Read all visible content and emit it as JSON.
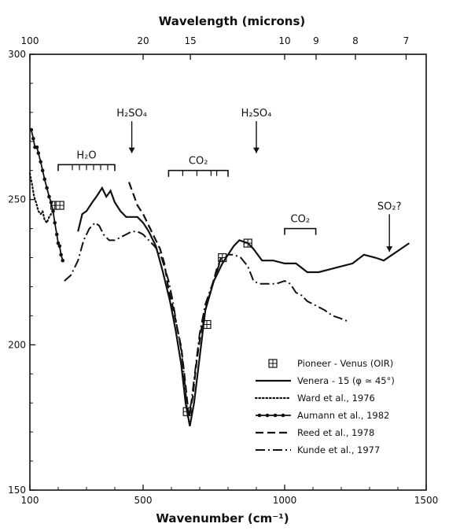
{
  "chart_data": {
    "type": "line",
    "xlabel": "Wavenumber (cm⁻¹)",
    "x2label": "Wavelength (microns)",
    "xlim": [
      100,
      1500
    ],
    "ylim": [
      150,
      300
    ],
    "x_ticks": [
      100,
      500,
      1000,
      1500
    ],
    "y_ticks": [
      150,
      200,
      250,
      300
    ],
    "x2_ticks": [
      {
        "label": "100",
        "wavenumber": 100
      },
      {
        "label": "20",
        "wavenumber": 500
      },
      {
        "label": "15",
        "wavenumber": 667
      },
      {
        "label": "10",
        "wavenumber": 1000
      },
      {
        "label": "9",
        "wavenumber": 1111
      },
      {
        "label": "8",
        "wavenumber": 1250
      },
      {
        "label": "7",
        "wavenumber": 1429
      }
    ],
    "legend_position": "lower-right",
    "series": [
      {
        "name": "Pioneer - Venus (OIR)",
        "style": "boxplus",
        "points": [
          [
            188,
            248
          ],
          [
            206,
            248
          ],
          [
            656,
            177
          ],
          [
            725,
            207
          ],
          [
            780,
            230
          ],
          [
            870,
            235
          ]
        ]
      },
      {
        "name": "Venera - 15 (φ ≃ 45°)",
        "style": "solid",
        "points": [
          [
            270,
            239
          ],
          [
            285,
            245
          ],
          [
            300,
            246
          ],
          [
            320,
            249
          ],
          [
            335,
            251
          ],
          [
            355,
            254
          ],
          [
            370,
            251
          ],
          [
            385,
            253
          ],
          [
            400,
            249
          ],
          [
            420,
            246
          ],
          [
            440,
            244
          ],
          [
            460,
            244
          ],
          [
            480,
            244
          ],
          [
            500,
            242
          ],
          [
            520,
            239
          ],
          [
            545,
            234
          ],
          [
            570,
            225
          ],
          [
            595,
            215
          ],
          [
            615,
            205
          ],
          [
            635,
            193
          ],
          [
            650,
            180
          ],
          [
            665,
            172
          ],
          [
            680,
            180
          ],
          [
            700,
            196
          ],
          [
            720,
            212
          ],
          [
            750,
            222
          ],
          [
            780,
            228
          ],
          [
            800,
            231
          ],
          [
            820,
            234
          ],
          [
            840,
            236
          ],
          [
            870,
            235
          ],
          [
            890,
            233
          ],
          [
            920,
            229
          ],
          [
            960,
            229
          ],
          [
            1000,
            228
          ],
          [
            1040,
            228
          ],
          [
            1080,
            225
          ],
          [
            1120,
            225
          ],
          [
            1160,
            226
          ],
          [
            1200,
            227
          ],
          [
            1240,
            228
          ],
          [
            1280,
            231
          ],
          [
            1320,
            230
          ],
          [
            1350,
            229
          ],
          [
            1380,
            231
          ],
          [
            1410,
            233
          ],
          [
            1440,
            235
          ]
        ]
      },
      {
        "name": "Ward et al., 1976",
        "style": "dotted",
        "points": [
          [
            100,
            259
          ],
          [
            108,
            255
          ],
          [
            115,
            251
          ],
          [
            122,
            249
          ],
          [
            130,
            246
          ],
          [
            138,
            245
          ],
          [
            145,
            246
          ],
          [
            152,
            243
          ],
          [
            160,
            242
          ],
          [
            168,
            244
          ],
          [
            175,
            245
          ],
          [
            182,
            246
          ]
        ]
      },
      {
        "name": "Aumann et al., 1982",
        "style": "dot-solid",
        "points": [
          [
            105,
            274
          ],
          [
            112,
            271
          ],
          [
            118,
            268
          ],
          [
            125,
            268
          ],
          [
            130,
            266
          ],
          [
            138,
            263
          ],
          [
            145,
            260
          ],
          [
            152,
            257
          ],
          [
            160,
            254
          ],
          [
            168,
            251
          ],
          [
            175,
            249
          ],
          [
            182,
            246
          ],
          [
            188,
            242
          ],
          [
            195,
            238
          ],
          [
            200,
            235
          ],
          [
            205,
            234
          ],
          [
            210,
            231
          ],
          [
            216,
            229
          ]
        ]
      },
      {
        "name": "Reed et al., 1978",
        "style": "dashed",
        "points": [
          [
            450,
            256
          ],
          [
            465,
            252
          ],
          [
            480,
            248
          ],
          [
            500,
            245
          ],
          [
            520,
            241
          ],
          [
            540,
            237
          ],
          [
            560,
            233
          ],
          [
            575,
            228
          ],
          [
            590,
            219
          ],
          [
            605,
            213
          ],
          [
            620,
            206
          ],
          [
            635,
            199
          ],
          [
            650,
            186
          ],
          [
            662,
            175
          ],
          [
            675,
            182
          ],
          [
            690,
            195
          ],
          [
            705,
            205
          ],
          [
            720,
            212
          ],
          [
            740,
            219
          ],
          [
            760,
            226
          ],
          [
            780,
            231
          ]
        ]
      },
      {
        "name": "Kunde et al., 1977",
        "style": "dash-dot",
        "points": [
          [
            222,
            222
          ],
          [
            245,
            224
          ],
          [
            270,
            229
          ],
          [
            290,
            236
          ],
          [
            310,
            240
          ],
          [
            330,
            242
          ],
          [
            345,
            241
          ],
          [
            360,
            238
          ],
          [
            380,
            236
          ],
          [
            400,
            236
          ],
          [
            420,
            237
          ],
          [
            440,
            238
          ],
          [
            460,
            239
          ],
          [
            480,
            239
          ],
          [
            500,
            238
          ],
          [
            520,
            236
          ],
          [
            540,
            234
          ],
          [
            555,
            232
          ],
          [
            565,
            230
          ],
          [
            575,
            227
          ],
          [
            590,
            222
          ],
          [
            605,
            215
          ],
          [
            620,
            206
          ],
          [
            635,
            198
          ],
          [
            648,
            186
          ],
          [
            658,
            175
          ],
          [
            670,
            180
          ],
          [
            685,
            192
          ],
          [
            700,
            204
          ],
          [
            720,
            214
          ],
          [
            745,
            221
          ],
          [
            770,
            228
          ],
          [
            800,
            231
          ],
          [
            820,
            231
          ],
          [
            845,
            230
          ],
          [
            870,
            227
          ],
          [
            890,
            222
          ],
          [
            910,
            221
          ],
          [
            940,
            221
          ],
          [
            970,
            221
          ],
          [
            1000,
            222
          ],
          [
            1020,
            221
          ],
          [
            1040,
            218
          ],
          [
            1060,
            217
          ],
          [
            1080,
            215
          ],
          [
            1100,
            214
          ],
          [
            1120,
            213
          ],
          [
            1140,
            212
          ],
          [
            1170,
            210
          ],
          [
            1200,
            209
          ],
          [
            1225,
            208
          ]
        ]
      }
    ],
    "annotations": [
      {
        "id": "h2o-1",
        "text": "H₂O",
        "type": "bracket",
        "x_range": [
          200,
          400
        ],
        "y": 262,
        "ticks": [
          250,
          275,
          300,
          325,
          350,
          375
        ]
      },
      {
        "id": "co2-1",
        "text": "CO₂",
        "type": "bracket",
        "x_range": [
          590,
          800
        ],
        "y": 260,
        "ticks": [
          640,
          690,
          740,
          760
        ]
      },
      {
        "id": "co2-2",
        "text": "CO₂",
        "type": "bracket",
        "x_range": [
          1000,
          1110
        ],
        "y": 240,
        "ticks": []
      },
      {
        "id": "h2so4-1",
        "text": "H₂SO₄",
        "type": "arrow",
        "x": 460,
        "y_from": 271,
        "y_to": 266
      },
      {
        "id": "h2so4-2",
        "text": "H₂SO₄",
        "type": "arrow",
        "x": 900,
        "y_from": 271,
        "y_to": 266
      },
      {
        "id": "so2",
        "text": "SO₂?",
        "type": "arrow",
        "x": 1370,
        "y_from": 239,
        "y_to": 232
      }
    ]
  }
}
